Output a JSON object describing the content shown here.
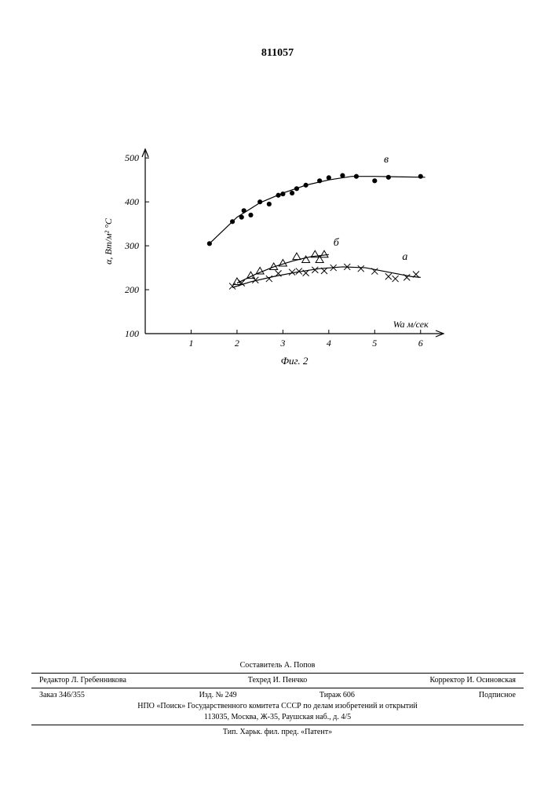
{
  "page_number": "811057",
  "chart": {
    "type": "scatter-line",
    "caption": "Фиг. 2",
    "caption_fontsize": 13,
    "ylabel": "α, Вт/м² °С",
    "ylabel_fontsize": 12,
    "xlabel": "Wa м/сек",
    "xlabel_fontsize": 12,
    "xlim": [
      0,
      6.5
    ],
    "ylim": [
      100,
      520
    ],
    "xticks": [
      1,
      2,
      3,
      4,
      5,
      6
    ],
    "yticks": [
      100,
      200,
      300,
      400,
      500
    ],
    "background_color": "#ffffff",
    "axis_color": "#000000",
    "tick_len": 5,
    "series": [
      {
        "id": "в",
        "label": "в",
        "label_pos": {
          "x": 5.2,
          "y": 490
        },
        "marker": "dot",
        "marker_color": "#000000",
        "marker_size": 4,
        "line_color": "#000000",
        "line_width": 1.2,
        "points": [
          {
            "x": 1.4,
            "y": 305
          },
          {
            "x": 1.9,
            "y": 355
          },
          {
            "x": 2.1,
            "y": 365
          },
          {
            "x": 2.15,
            "y": 380
          },
          {
            "x": 2.3,
            "y": 370
          },
          {
            "x": 2.5,
            "y": 400
          },
          {
            "x": 2.7,
            "y": 395
          },
          {
            "x": 2.9,
            "y": 415
          },
          {
            "x": 3.0,
            "y": 418
          },
          {
            "x": 3.2,
            "y": 420
          },
          {
            "x": 3.3,
            "y": 430
          },
          {
            "x": 3.5,
            "y": 438
          },
          {
            "x": 3.8,
            "y": 448
          },
          {
            "x": 4.0,
            "y": 455
          },
          {
            "x": 4.3,
            "y": 460
          },
          {
            "x": 4.6,
            "y": 458
          },
          {
            "x": 5.0,
            "y": 448
          },
          {
            "x": 5.3,
            "y": 456
          },
          {
            "x": 6.0,
            "y": 458
          }
        ],
        "curve": [
          {
            "x": 1.4,
            "y": 305
          },
          {
            "x": 2.0,
            "y": 365
          },
          {
            "x": 2.5,
            "y": 398
          },
          {
            "x": 3.0,
            "y": 420
          },
          {
            "x": 3.5,
            "y": 438
          },
          {
            "x": 4.0,
            "y": 450
          },
          {
            "x": 4.5,
            "y": 458
          },
          {
            "x": 5.0,
            "y": 458
          },
          {
            "x": 5.5,
            "y": 457
          },
          {
            "x": 6.1,
            "y": 456
          }
        ]
      },
      {
        "id": "б",
        "label": "б",
        "label_pos": {
          "x": 4.1,
          "y": 300
        },
        "marker": "triangle",
        "marker_color": "#000000",
        "marker_size": 5,
        "line_color": "#000000",
        "line_width": 1.2,
        "points": [
          {
            "x": 2.0,
            "y": 218
          },
          {
            "x": 2.3,
            "y": 232
          },
          {
            "x": 2.5,
            "y": 242
          },
          {
            "x": 2.8,
            "y": 252
          },
          {
            "x": 3.0,
            "y": 260
          },
          {
            "x": 3.3,
            "y": 275
          },
          {
            "x": 3.5,
            "y": 268
          },
          {
            "x": 3.7,
            "y": 280
          },
          {
            "x": 3.8,
            "y": 268
          },
          {
            "x": 3.9,
            "y": 280
          }
        ],
        "curve": [
          {
            "x": 2.0,
            "y": 215
          },
          {
            "x": 2.4,
            "y": 235
          },
          {
            "x": 2.8,
            "y": 252
          },
          {
            "x": 3.2,
            "y": 265
          },
          {
            "x": 3.6,
            "y": 275
          },
          {
            "x": 4.0,
            "y": 280
          }
        ]
      },
      {
        "id": "а",
        "label": "а",
        "label_pos": {
          "x": 5.6,
          "y": 268
        },
        "marker": "cross",
        "marker_color": "#000000",
        "marker_size": 4,
        "line_color": "#000000",
        "line_width": 1.2,
        "points": [
          {
            "x": 1.9,
            "y": 208
          },
          {
            "x": 2.1,
            "y": 215
          },
          {
            "x": 2.4,
            "y": 222
          },
          {
            "x": 2.7,
            "y": 225
          },
          {
            "x": 2.9,
            "y": 237
          },
          {
            "x": 3.2,
            "y": 240
          },
          {
            "x": 3.35,
            "y": 242
          },
          {
            "x": 3.5,
            "y": 238
          },
          {
            "x": 3.7,
            "y": 245
          },
          {
            "x": 3.9,
            "y": 243
          },
          {
            "x": 4.1,
            "y": 250
          },
          {
            "x": 4.4,
            "y": 252
          },
          {
            "x": 4.7,
            "y": 248
          },
          {
            "x": 5.0,
            "y": 242
          },
          {
            "x": 5.3,
            "y": 230
          },
          {
            "x": 5.45,
            "y": 225
          },
          {
            "x": 5.7,
            "y": 228
          },
          {
            "x": 5.9,
            "y": 235
          }
        ],
        "curve": [
          {
            "x": 1.9,
            "y": 205
          },
          {
            "x": 2.3,
            "y": 218
          },
          {
            "x": 2.8,
            "y": 230
          },
          {
            "x": 3.3,
            "y": 240
          },
          {
            "x": 3.8,
            "y": 248
          },
          {
            "x": 4.3,
            "y": 252
          },
          {
            "x": 4.8,
            "y": 250
          },
          {
            "x": 5.3,
            "y": 240
          },
          {
            "x": 5.8,
            "y": 230
          },
          {
            "x": 6.0,
            "y": 228
          }
        ]
      }
    ]
  },
  "footer": {
    "compiler": "Составитель А. Попов",
    "row1": {
      "editor": "Редактор Л. Гребенникова",
      "techred": "Техред И. Пенчко",
      "corrector": "Корректор И. Осиновская"
    },
    "row2": {
      "order": "Заказ 346/355",
      "issue": "Изд. № 249",
      "tirage": "Тираж 606",
      "subscribe": "Подписное"
    },
    "org": "НПО «Поиск» Государственного комитета СССР по делам изобретений и открытий",
    "address": "113035, Москва, Ж-35, Раушская наб., д. 4/5",
    "printer": "Тип. Харьк. фил. пред. «Патент»"
  }
}
